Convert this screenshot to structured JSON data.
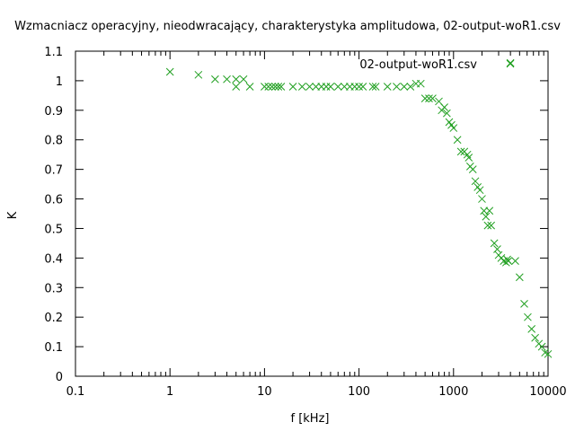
{
  "chart_data": {
    "type": "scatter",
    "title": "Wzmacniacz operacyjny, nieodwracający, charakterystyka amplitudowa, 02-output-woR1.csv",
    "xlabel": "f [kHz]",
    "ylabel": "K",
    "x_scale": "log",
    "xlim": [
      0.1,
      10000
    ],
    "ylim": [
      0,
      1.1
    ],
    "grid": false,
    "legend_position": "top-right",
    "marker": "x",
    "color": "#22a022",
    "x_ticks": [
      {
        "value": 0.1,
        "label": "0.1"
      },
      {
        "value": 1,
        "label": "1"
      },
      {
        "value": 10,
        "label": "10"
      },
      {
        "value": 100,
        "label": "100"
      },
      {
        "value": 1000,
        "label": "1000"
      },
      {
        "value": 10000,
        "label": "10000"
      }
    ],
    "y_ticks": [
      {
        "value": 0,
        "label": "0"
      },
      {
        "value": 0.1,
        "label": "0.1"
      },
      {
        "value": 0.2,
        "label": "0.2"
      },
      {
        "value": 0.3,
        "label": "0.3"
      },
      {
        "value": 0.4,
        "label": "0.4"
      },
      {
        "value": 0.5,
        "label": "0.5"
      },
      {
        "value": 0.6,
        "label": "0.6"
      },
      {
        "value": 0.7,
        "label": "0.7"
      },
      {
        "value": 0.8,
        "label": "0.8"
      },
      {
        "value": 0.9,
        "label": "0.9"
      },
      {
        "value": 1,
        "label": "1"
      },
      {
        "value": 1.1,
        "label": "1.1"
      }
    ],
    "series": [
      {
        "name": "02-output-woR1.csv",
        "x": [
          1,
          2,
          3,
          4,
          5,
          5,
          6,
          7,
          10,
          11,
          12,
          13,
          14,
          15,
          20,
          25,
          30,
          35,
          40,
          45,
          50,
          60,
          70,
          80,
          90,
          100,
          110,
          140,
          150,
          200,
          250,
          300,
          350,
          400,
          450,
          500,
          550,
          600,
          700,
          750,
          800,
          850,
          900,
          950,
          1000,
          1100,
          1200,
          1300,
          1400,
          1450,
          1500,
          1600,
          1700,
          1800,
          1900,
          2000,
          2100,
          2200,
          2300,
          2400,
          2500,
          2700,
          2900,
          3000,
          3200,
          3400,
          3600,
          3700,
          3800,
          4000,
          4500,
          5000,
          5600,
          6100,
          6700,
          7300,
          8000,
          8600,
          9300,
          10000
        ],
        "y": [
          1.03,
          1.02,
          1.005,
          1.005,
          1.005,
          0.98,
          1.005,
          0.98,
          0.98,
          0.98,
          0.98,
          0.98,
          0.98,
          0.98,
          0.98,
          0.98,
          0.98,
          0.98,
          0.98,
          0.98,
          0.98,
          0.98,
          0.98,
          0.98,
          0.98,
          0.98,
          0.98,
          0.98,
          0.98,
          0.98,
          0.98,
          0.98,
          0.98,
          0.99,
          0.99,
          0.94,
          0.94,
          0.94,
          0.93,
          0.9,
          0.91,
          0.89,
          0.86,
          0.85,
          0.84,
          0.8,
          0.76,
          0.76,
          0.75,
          0.74,
          0.71,
          0.7,
          0.66,
          0.64,
          0.63,
          0.6,
          0.56,
          0.54,
          0.51,
          0.56,
          0.51,
          0.45,
          0.43,
          0.41,
          0.4,
          0.39,
          0.385,
          0.395,
          0.39,
          1.06,
          0.39,
          0.335,
          0.245,
          0.2,
          0.16,
          0.13,
          0.11,
          0.1,
          0.08,
          0.075
        ]
      }
    ]
  }
}
